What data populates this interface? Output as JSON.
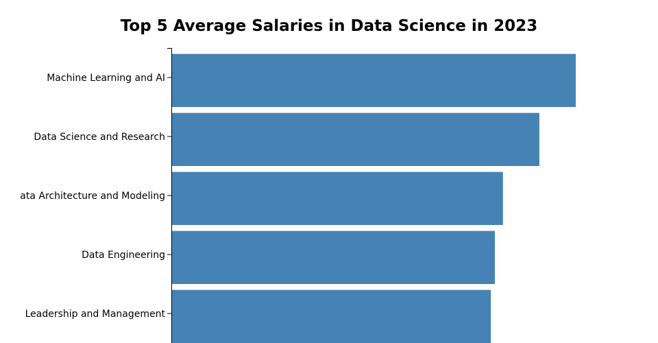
{
  "chart_data": {
    "type": "bar",
    "orientation": "horizontal",
    "title": "Top 5 Average Salaries in Data Science in 2023",
    "categories": [
      "Machine Learning and AI",
      "Data Science and Research",
      "ata Architecture and Modeling",
      "Data Engineering",
      "Leadership and Management"
    ],
    "values": [
      100,
      91,
      82,
      80,
      79
    ],
    "xlim": [
      0,
      100
    ],
    "xlabel": "",
    "ylabel": "",
    "grid": false,
    "legend": "none",
    "bar_color": "#4682b4"
  }
}
